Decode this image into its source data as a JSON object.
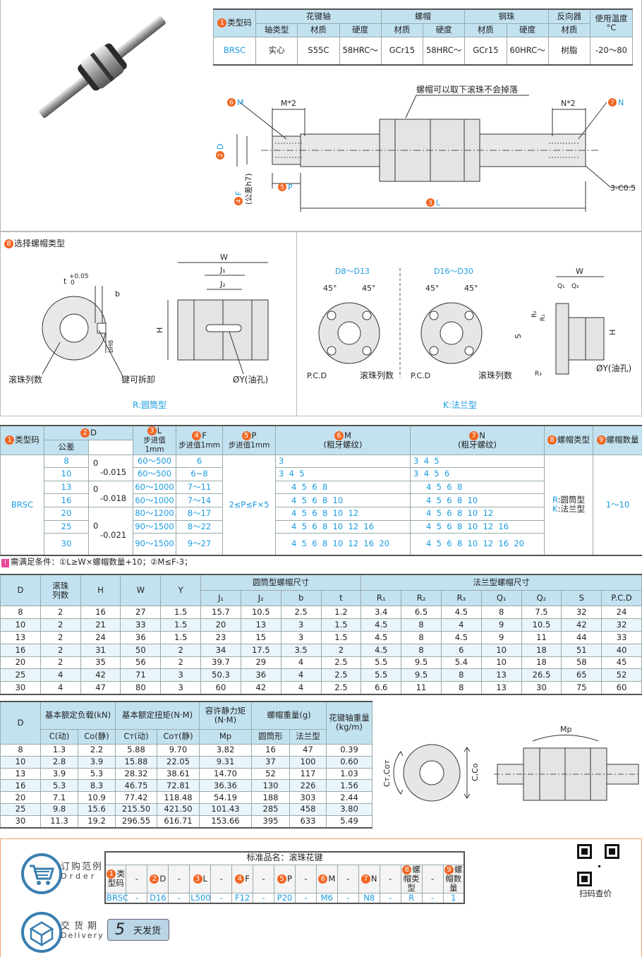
{
  "colors": {
    "accent": "#1a9be0",
    "badge": "#f26522",
    "header": "#c3e2f0",
    "border_orange": "#f0a070"
  },
  "spec_table": {
    "h_type": "类型码",
    "h_shaft": "花键轴",
    "h_nut": "螺帽",
    "h_ball": "钢珠",
    "h_rev": "反向器",
    "h_temp": "使用温度",
    "h_temp_unit": "°C",
    "sub": [
      "轴类型",
      "材质",
      "硬度",
      "材质",
      "硬度",
      "材质",
      "硬度",
      "材质"
    ],
    "row": [
      "BRSC",
      "实心",
      "S55C",
      "58HRC～",
      "GCr15",
      "58HRC～",
      "GCr15",
      "60HRC～",
      "树脂",
      "-20～80"
    ]
  },
  "drawing1": {
    "m": "M",
    "m2": "M*2",
    "note": "螺帽可以取下滚珠不会掉落",
    "n2": "N*2",
    "n": "N",
    "d": "D",
    "f": "F",
    "f_tol": "(公差h7)",
    "p": "P",
    "l": "L",
    "chamfer": "3-C0.5"
  },
  "nut_section": {
    "title": "选择螺帽类型",
    "r_caption": "R:圆筒型",
    "k_caption": "K:法兰型",
    "r": {
      "t": "t",
      "tol": "+0.05",
      "tol0": "0",
      "b": "b",
      "bh8": "bH8",
      "w": "W",
      "j1": "J₁",
      "j2": "J₂",
      "h": "H",
      "balls": "滚珠列数",
      "key": "键可拆卸",
      "oil": "ØY(油孔)"
    },
    "k": {
      "range1": "D8～D13",
      "range2": "D16～D30",
      "a45": "45°",
      "pcd": "P.C.D",
      "balls": "滚珠列数",
      "w": "W",
      "q1": "Q₁",
      "q2": "Q₂",
      "r1": "R₁",
      "r2": "R₂",
      "r3": "R₃",
      "s": "S",
      "h": "H",
      "oil": "ØY(油孔)"
    }
  },
  "sel_table": {
    "h": {
      "type": "类型码",
      "d": "D",
      "tol": "公差",
      "l": "L",
      "f": "F",
      "p": "P",
      "step": "步进值1mm",
      "m": "M",
      "n": "N",
      "thread": "(粗牙螺纹)",
      "nut_type": "螺帽类型",
      "nut_qty": "螺帽数量"
    },
    "type": "BRSC",
    "p_range": "2≤P≤F×5",
    "nut_types": [
      "R:圆筒型",
      "K:法兰型"
    ],
    "qty": "1～10",
    "tols": [
      [
        "0",
        "-0.015"
      ],
      [
        "0",
        "-0.018"
      ],
      [
        "0",
        "-0.021"
      ]
    ],
    "rows": [
      {
        "d": "8",
        "l": "60～500",
        "f": "6",
        "m": "3",
        "n": "3  4  5"
      },
      {
        "d": "10",
        "l": "60～500",
        "f": "6~8",
        "m": "3  4  5",
        "n": "3  4  5  6"
      },
      {
        "d": "13",
        "l": "60～1000",
        "f": "7～11",
        "m": "4  5  6  8",
        "n": "4  5  6  8"
      },
      {
        "d": "16",
        "l": "60～1000",
        "f": "7～14",
        "m": "4  5  6  8  10",
        "n": "4  5  6  8  10"
      },
      {
        "d": "20",
        "l": "80～1200",
        "f": "8～17",
        "m": "4  5  6  8  10  12",
        "n": "4  5  6  8  10  12"
      },
      {
        "d": "25",
        "l": "90～1500",
        "f": "8～22",
        "m": "4  5  6  8  10  12  16",
        "n": "4  5  6  8  10  12  16"
      },
      {
        "d": "30",
        "l": "90～1500",
        "f": "9～27",
        "m": "4  5  6  8  10  12  16  20",
        "n": "4  5  6  8  10  12  16  20"
      }
    ]
  },
  "note": "需满足条件：①L≥W×螺帽数量+10；②M≤F-3；",
  "dim_table": {
    "h": {
      "d": "D",
      "balls": "滚珠列数",
      "h": "H",
      "w": "W",
      "y": "Y",
      "cyl": "圆筒型螺帽尺寸",
      "flange": "法兰型螺帽尺寸"
    },
    "sub": [
      "J₁",
      "J₂",
      "b",
      "t",
      "R₁",
      "R₂",
      "R₃",
      "Q₁",
      "Q₂",
      "S",
      "P.C.D"
    ],
    "rows": [
      [
        "8",
        "2",
        "16",
        "27",
        "1.5",
        "15.7",
        "10.5",
        "2.5",
        "1.2",
        "3.4",
        "6.5",
        "4.5",
        "8",
        "7.5",
        "32",
        "24"
      ],
      [
        "10",
        "2",
        "21",
        "33",
        "1.5",
        "20",
        "13",
        "3",
        "1.5",
        "4.5",
        "8",
        "4",
        "9",
        "10.5",
        "42",
        "32"
      ],
      [
        "13",
        "2",
        "24",
        "36",
        "1.5",
        "23",
        "15",
        "3",
        "1.5",
        "4.5",
        "8",
        "4.5",
        "9",
        "11",
        "44",
        "33"
      ],
      [
        "16",
        "2",
        "31",
        "50",
        "2",
        "34",
        "17.5",
        "3.5",
        "2",
        "4.5",
        "8",
        "6",
        "10",
        "18",
        "51",
        "40"
      ],
      [
        "20",
        "2",
        "35",
        "56",
        "2",
        "39.7",
        "29",
        "4",
        "2.5",
        "5.5",
        "9.5",
        "5.4",
        "10",
        "18",
        "58",
        "45"
      ],
      [
        "25",
        "4",
        "42",
        "71",
        "3",
        "50.3",
        "36",
        "4",
        "2.5",
        "5.5",
        "9.5",
        "8",
        "13",
        "26.5",
        "65",
        "52"
      ],
      [
        "30",
        "4",
        "47",
        "80",
        "3",
        "60",
        "42",
        "4",
        "2.5",
        "6.6",
        "11",
        "8",
        "13",
        "30",
        "75",
        "60"
      ]
    ]
  },
  "load_table": {
    "h": {
      "d": "D",
      "load": "基本额定负载(kN)",
      "torque": "基本额定扭矩(N·M)",
      "moment": "容许静力矩",
      "moment_unit": "(N·M)",
      "nut_w": "螺帽重量(g)",
      "shaft_w": "花键轴重量",
      "shaft_unit": "(kg/m)"
    },
    "sub": [
      "C(动)",
      "Co(静)",
      "Cт(动)",
      "Coт(静)",
      "Mp",
      "圆筒形",
      "法兰型"
    ],
    "rows": [
      [
        "8",
        "1.3",
        "2.2",
        "5.88",
        "9.70",
        "3.82",
        "16",
        "47",
        "0.39"
      ],
      [
        "10",
        "2.8",
        "3.9",
        "15.88",
        "22.05",
        "9.31",
        "37",
        "100",
        "0.60"
      ],
      [
        "13",
        "3.9",
        "5.3",
        "28.32",
        "38.61",
        "14.70",
        "52",
        "117",
        "1.03"
      ],
      [
        "16",
        "5.3",
        "8.3",
        "46.75",
        "72.81",
        "36.36",
        "130",
        "226",
        "1.56"
      ],
      [
        "20",
        "7.1",
        "10.9",
        "77.42",
        "118.48",
        "54.19",
        "188",
        "303",
        "2.44"
      ],
      [
        "25",
        "9.8",
        "15.6",
        "215.50",
        "421.50",
        "101.43",
        "285",
        "458",
        "3.80"
      ],
      [
        "30",
        "11.3",
        "19.2",
        "296.55",
        "616.71",
        "153.66",
        "395",
        "633",
        "5.49"
      ]
    ]
  },
  "load_diagram": {
    "ct": "Cт,Coт",
    "c": "C,Co",
    "mp": "Mp"
  },
  "order": {
    "title": "订购范例",
    "title_en": "Order",
    "std_name": "标准品名：滚珠花键",
    "headers": [
      {
        "n": "1",
        "t": "类型码"
      },
      {
        "n": "2",
        "t": "D"
      },
      {
        "n": "3",
        "t": "L"
      },
      {
        "n": "4",
        "t": "F"
      },
      {
        "n": "5",
        "t": "P"
      },
      {
        "n": "6",
        "t": "M"
      },
      {
        "n": "7",
        "t": "N"
      },
      {
        "n": "8",
        "t": "螺帽类型"
      },
      {
        "n": "9",
        "t": "螺帽数量"
      }
    ],
    "values": [
      "BRSC",
      "D16",
      "L500",
      "F12",
      "P20",
      "M6",
      "N8",
      "R",
      "1"
    ],
    "sep": "-",
    "qr_caption": "扫码查价"
  },
  "delivery": {
    "title": "交货期",
    "title_en": "Delivery",
    "days": "5",
    "unit": "天发货"
  }
}
